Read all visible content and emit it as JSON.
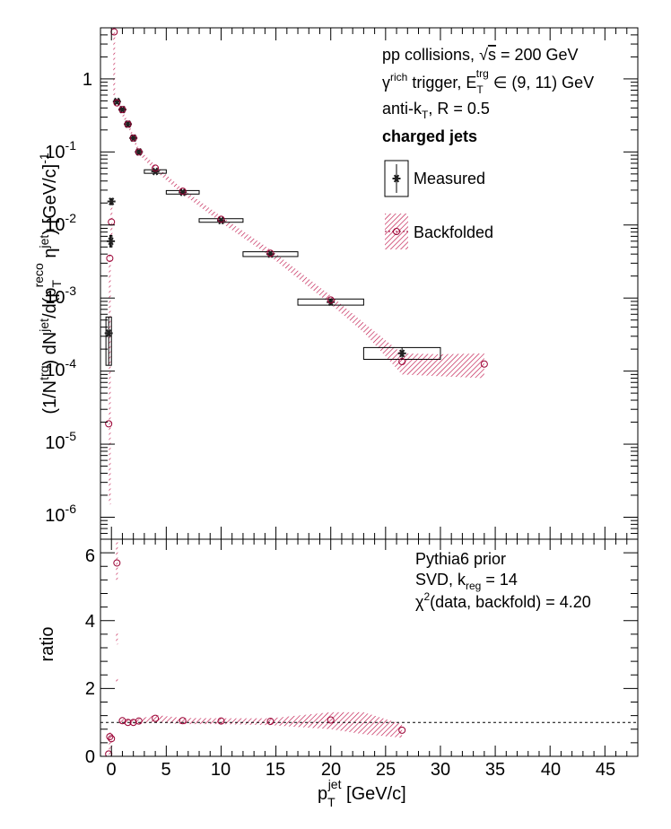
{
  "chart_data": [
    {
      "type": "scatter",
      "panel": "top",
      "ylabel": "(1/N^trg) dN^jet/d(p_T^reco jet η^jet) [GeV/c]^-1",
      "yscale": "log",
      "xlim": [
        -1,
        48
      ],
      "ylim": [
        5e-07,
        5
      ],
      "x_ticks": [
        0,
        5,
        10,
        15,
        20,
        25,
        30,
        35,
        40,
        45
      ],
      "y_tick_labels": [
        "1",
        "10^-1",
        "10^-2",
        "10^-3",
        "10^-4",
        "10^-5",
        "10^-6"
      ],
      "annotations": {
        "line1": "pp collisions, √s = 200 GeV",
        "line2": "γ^rich trigger, E_T^trg ∈ (9, 11) GeV",
        "line3": "anti-k_T, R = 0.5",
        "line4": "charged jets"
      },
      "legend": {
        "position": "top-right",
        "measured": "Measured",
        "backfolded": "Backfolded"
      },
      "series": [
        {
          "name": "Measured",
          "color": "#000000",
          "points": [
            {
              "x": -0.25,
              "y": 0.00033,
              "xlo": -0.5,
              "xhi": 0.0,
              "ylo": 0.00012,
              "yhi": 0.00055
            },
            {
              "x": -0.05,
              "y": 0.006,
              "xlo": -0.15,
              "xhi": 0.05,
              "ylo": 0.005,
              "yhi": 0.0072
            },
            {
              "x": 0.0,
              "y": 0.021,
              "xlo": -0.1,
              "xhi": 0.1,
              "ylo": 0.019,
              "yhi": 0.023
            },
            {
              "x": 0.5,
              "y": 0.49,
              "xlo": 0.25,
              "xhi": 0.75,
              "ylo": 0.46,
              "yhi": 0.52
            },
            {
              "x": 1.0,
              "y": 0.38,
              "xlo": 0.75,
              "xhi": 1.25,
              "ylo": 0.36,
              "yhi": 0.4
            },
            {
              "x": 1.5,
              "y": 0.24,
              "xlo": 1.25,
              "xhi": 1.75,
              "ylo": 0.225,
              "yhi": 0.255
            },
            {
              "x": 2.0,
              "y": 0.155,
              "xlo": 1.75,
              "xhi": 2.25,
              "ylo": 0.146,
              "yhi": 0.164
            },
            {
              "x": 2.5,
              "y": 0.1,
              "xlo": 2.25,
              "xhi": 2.75,
              "ylo": 0.094,
              "yhi": 0.106
            },
            {
              "x": 4.0,
              "y": 0.054,
              "xlo": 3.0,
              "xhi": 5.0,
              "ylo": 0.051,
              "yhi": 0.057
            },
            {
              "x": 6.5,
              "y": 0.028,
              "xlo": 5.0,
              "xhi": 8.0,
              "ylo": 0.0265,
              "yhi": 0.0296
            },
            {
              "x": 10.0,
              "y": 0.0115,
              "xlo": 8.0,
              "xhi": 12.0,
              "ylo": 0.0109,
              "yhi": 0.0122
            },
            {
              "x": 14.5,
              "y": 0.004,
              "xlo": 12.0,
              "xhi": 17.0,
              "ylo": 0.0037,
              "yhi": 0.0043
            },
            {
              "x": 20.0,
              "y": 0.00088,
              "xlo": 17.0,
              "xhi": 23.0,
              "ylo": 0.0008,
              "yhi": 0.00097
            },
            {
              "x": 26.5,
              "y": 0.000175,
              "xlo": 23.0,
              "xhi": 30.0,
              "ylo": 0.000145,
              "yhi": 0.00021
            }
          ]
        },
        {
          "name": "Backfolded",
          "color": "#990033",
          "points": [
            {
              "x": -0.25,
              "y": 1.9e-05
            },
            {
              "x": -0.15,
              "y": 0.0035
            },
            {
              "x": 0.0,
              "y": 0.011
            },
            {
              "x": 0.25,
              "y": 4.4
            },
            {
              "x": 0.5,
              "y": 0.47
            },
            {
              "x": 1.0,
              "y": 0.38
            },
            {
              "x": 1.5,
              "y": 0.24
            },
            {
              "x": 2.0,
              "y": 0.155
            },
            {
              "x": 2.5,
              "y": 0.1
            },
            {
              "x": 4.0,
              "y": 0.06
            },
            {
              "x": 6.5,
              "y": 0.029
            },
            {
              "x": 10.0,
              "y": 0.012
            },
            {
              "x": 14.5,
              "y": 0.0041
            },
            {
              "x": 20.0,
              "y": 0.00094
            },
            {
              "x": 26.5,
              "y": 0.000135
            },
            {
              "x": 34.0,
              "y": 0.000125
            }
          ],
          "band": [
            {
              "x": 0.5,
              "lo": 0.43,
              "hi": 0.51
            },
            {
              "x": 1.5,
              "lo": 0.225,
              "hi": 0.26
            },
            {
              "x": 2.5,
              "lo": 0.093,
              "hi": 0.108
            },
            {
              "x": 4.0,
              "lo": 0.055,
              "hi": 0.066
            },
            {
              "x": 6.5,
              "lo": 0.0265,
              "hi": 0.031
            },
            {
              "x": 10.0,
              "lo": 0.0108,
              "hi": 0.0132
            },
            {
              "x": 14.5,
              "lo": 0.0037,
              "hi": 0.0046
            },
            {
              "x": 20.0,
              "lo": 0.00082,
              "hi": 0.00108
            },
            {
              "x": 23.0,
              "lo": 0.00034,
              "hi": 0.00046
            },
            {
              "x": 26.5,
              "lo": 9e-05,
              "hi": 0.000175
            },
            {
              "x": 30.0,
              "lo": 8.5e-05,
              "hi": 0.00017
            },
            {
              "x": 34.0,
              "lo": 8e-05,
              "hi": 0.000175
            }
          ]
        }
      ]
    },
    {
      "type": "scatter",
      "panel": "bottom",
      "xlabel": "p_T^jet [GeV/c]",
      "ylabel": "ratio",
      "xlim": [
        -1,
        48
      ],
      "ylim": [
        0,
        6.4
      ],
      "x_ticks": [
        0,
        5,
        10,
        15,
        20,
        25,
        30,
        35,
        40,
        45
      ],
      "y_ticks": [
        0,
        2,
        4,
        6
      ],
      "reference_line": 1.0,
      "annotations": {
        "line1": "Pythia6 prior",
        "line2": "SVD, k_reg = 14",
        "line3": "χ²(data, backfold) = 4.20"
      },
      "series": [
        {
          "name": "ratio",
          "color": "#990033",
          "points": [
            {
              "x": -0.25,
              "y": 0.07
            },
            {
              "x": -0.15,
              "y": 0.58
            },
            {
              "x": 0.0,
              "y": 0.52
            },
            {
              "x": 0.5,
              "y": 5.7
            },
            {
              "x": 1.0,
              "y": 1.05
            },
            {
              "x": 1.5,
              "y": 1.0
            },
            {
              "x": 2.0,
              "y": 1.0
            },
            {
              "x": 2.5,
              "y": 1.04
            },
            {
              "x": 4.0,
              "y": 1.12
            },
            {
              "x": 6.5,
              "y": 1.05
            },
            {
              "x": 10.0,
              "y": 1.04
            },
            {
              "x": 14.5,
              "y": 1.03
            },
            {
              "x": 20.0,
              "y": 1.07
            },
            {
              "x": 26.5,
              "y": 0.77
            }
          ],
          "band": [
            {
              "x": 0.75,
              "lo": 0.97,
              "hi": 1.1
            },
            {
              "x": 2.5,
              "lo": 0.96,
              "hi": 1.1
            },
            {
              "x": 4.0,
              "lo": 1.0,
              "hi": 1.22
            },
            {
              "x": 6.5,
              "lo": 0.95,
              "hi": 1.13
            },
            {
              "x": 10.0,
              "lo": 0.95,
              "hi": 1.12
            },
            {
              "x": 14.5,
              "lo": 0.92,
              "hi": 1.12
            },
            {
              "x": 20.0,
              "lo": 0.8,
              "hi": 1.3
            },
            {
              "x": 23.0,
              "lo": 0.65,
              "hi": 1.3
            },
            {
              "x": 26.5,
              "lo": 0.55,
              "hi": 0.95
            }
          ]
        }
      ]
    }
  ],
  "labels": {
    "x_axis_title_main": "p",
    "x_axis_title_sub": "T",
    "x_axis_title_sup": "jet",
    "x_axis_title_unit": " [GeV/c]",
    "ratio_title": "ratio",
    "top_y_title_parts": [
      "(1/N",
      "trg",
      ") dN",
      "jet",
      "/d(p",
      "T",
      "reco",
      " η",
      "jet",
      ") [GeV/c]",
      "-1"
    ],
    "legend_measured": "Measured",
    "legend_backfolded": "Backfolded",
    "ann_pp": "pp collisions,  ",
    "ann_sqrt": "√",
    "ann_s": "s",
    "ann_energy": " = 200 GeV",
    "ann_gamma": "γ",
    "ann_rich": "rich",
    "ann_trigger": " trigger, E",
    "ann_T": "T",
    "ann_trg": "trg",
    "ann_range": " ∈ (9, 11) GeV",
    "ann_antik": "anti-k",
    "ann_antik_T": "T",
    "ann_R": ", R = 0.5",
    "ann_charged": "charged jets",
    "ann_prior": "Pythia6 prior",
    "ann_svd": "SVD, k",
    "ann_reg": "reg",
    "ann_kval": " = 14",
    "ann_chi": "χ",
    "ann_chi_sup": "2",
    "ann_chi_rest": "(data, backfold) = 4.20",
    "y_tick_one": "1",
    "y_tick_ten": "10",
    "y_tick_exps": [
      "-1",
      "-2",
      "-3",
      "-4",
      "-5",
      "-6"
    ],
    "x_tick_labels": [
      "0",
      "5",
      "10",
      "15",
      "20",
      "25",
      "30",
      "35",
      "40",
      "45"
    ],
    "ratio_tick_labels": [
      "0",
      "2",
      "4",
      "6"
    ]
  },
  "colors": {
    "measured": "#000000",
    "backfolded": "#990033",
    "frame": "#000000"
  }
}
